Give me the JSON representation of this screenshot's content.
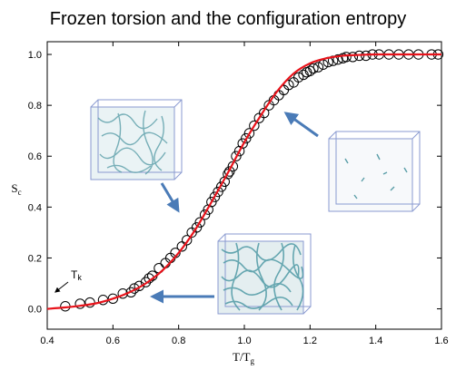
{
  "chart_data": {
    "type": "scatter",
    "title": "Frozen torsion and the configuration entropy",
    "xlabel": "T/Tg",
    "ylabel": "Sc",
    "xlim": [
      0.4,
      1.6
    ],
    "ylim": [
      -0.08,
      1.05
    ],
    "x_ticks": [
      "0.4",
      "0.6",
      "0.8",
      "1.0",
      "1.2",
      "1.4",
      "1.6"
    ],
    "y_ticks": [
      "0.0",
      "0.2",
      "0.4",
      "0.6",
      "0.8",
      "1.0"
    ],
    "annotation": "Tk",
    "colors": {
      "fit_line": "#e8131b",
      "points": "#000000",
      "arrow": "#4a7bb7"
    },
    "series": [
      {
        "kind": "points",
        "x": [
          0.455,
          0.5,
          0.53,
          0.57,
          0.6,
          0.63,
          0.655,
          0.665,
          0.68,
          0.7,
          0.71,
          0.72,
          0.74,
          0.76,
          0.775,
          0.79,
          0.81,
          0.825,
          0.84,
          0.855,
          0.865,
          0.88,
          0.89,
          0.9,
          0.91,
          0.92,
          0.93,
          0.94,
          0.95,
          0.955,
          0.965,
          0.975,
          0.985,
          0.995,
          1.005,
          1.015,
          1.03,
          1.045,
          1.06,
          1.075,
          1.09,
          1.105,
          1.12,
          1.135,
          1.15,
          1.165,
          1.18,
          1.19,
          1.2,
          1.21,
          1.225,
          1.24,
          1.255,
          1.27,
          1.285,
          1.3,
          1.31,
          1.33,
          1.35,
          1.37,
          1.39,
          1.41,
          1.44,
          1.47,
          1.5,
          1.53,
          1.57,
          1.59
        ],
        "y": [
          0.01,
          0.02,
          0.025,
          0.035,
          0.04,
          0.06,
          0.065,
          0.08,
          0.09,
          0.105,
          0.12,
          0.13,
          0.16,
          0.18,
          0.2,
          0.22,
          0.245,
          0.27,
          0.3,
          0.32,
          0.34,
          0.37,
          0.39,
          0.42,
          0.44,
          0.46,
          0.48,
          0.5,
          0.53,
          0.54,
          0.56,
          0.6,
          0.62,
          0.65,
          0.67,
          0.69,
          0.72,
          0.75,
          0.77,
          0.8,
          0.82,
          0.84,
          0.86,
          0.88,
          0.89,
          0.91,
          0.92,
          0.93,
          0.935,
          0.945,
          0.95,
          0.96,
          0.97,
          0.975,
          0.98,
          0.985,
          0.99,
          0.99,
          0.995,
          0.995,
          1.0,
          1.0,
          1.0,
          1.0,
          1.0,
          1.0,
          1.0,
          1.0
        ]
      },
      {
        "kind": "fit-line",
        "x": [
          0.4,
          0.45,
          0.5,
          0.55,
          0.6,
          0.65,
          0.7,
          0.75,
          0.8,
          0.85,
          0.9,
          0.95,
          1.0,
          1.05,
          1.1,
          1.15,
          1.2,
          1.25,
          1.3,
          1.35,
          1.4,
          1.5,
          1.6
        ],
        "y": [
          0.0,
          0.005,
          0.012,
          0.022,
          0.04,
          0.065,
          0.1,
          0.15,
          0.22,
          0.31,
          0.42,
          0.535,
          0.655,
          0.76,
          0.855,
          0.925,
          0.965,
          0.985,
          0.995,
          0.998,
          1.0,
          1.0,
          1.0
        ]
      }
    ]
  }
}
